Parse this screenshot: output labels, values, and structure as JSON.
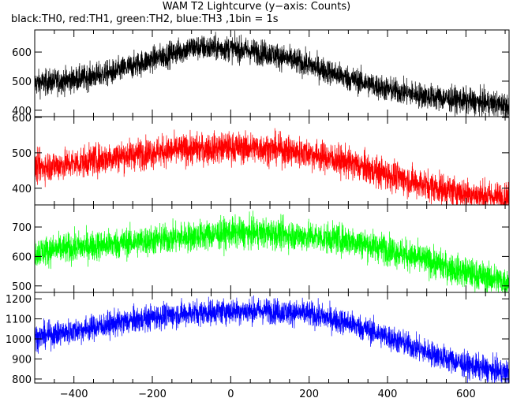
{
  "title": "WAM T2 Lightcurve (y−axis: Counts)",
  "subtitle": "black:TH0, red:TH1, green:TH2, blue:TH3 ,1bin = 1s",
  "chart_data": [
    {
      "type": "line",
      "series": [
        {
          "color": "#000000",
          "noise": 22,
          "x": [
            -500,
            -400,
            -300,
            -200,
            -100,
            0,
            100,
            200,
            300,
            400,
            500,
            600,
            700
          ],
          "values": [
            492,
            505,
            530,
            575,
            615,
            612,
            595,
            555,
            510,
            472,
            448,
            432,
            418
          ]
        }
      ],
      "ylim": [
        378,
        676
      ],
      "yticks": [
        400,
        500,
        600
      ]
    },
    {
      "type": "line",
      "series": [
        {
          "color": "#ff0000",
          "noise": 22,
          "x": [
            -500,
            -400,
            -300,
            -200,
            -100,
            0,
            100,
            200,
            300,
            400,
            500,
            600,
            700
          ],
          "values": [
            458,
            470,
            488,
            502,
            510,
            515,
            512,
            498,
            472,
            438,
            408,
            385,
            372
          ]
        }
      ],
      "ylim": [
        353,
        602
      ],
      "yticks": [
        400,
        500,
        600
      ]
    },
    {
      "type": "line",
      "series": [
        {
          "color": "#00ff00",
          "noise": 26,
          "x": [
            -500,
            -400,
            -300,
            -200,
            -100,
            0,
            100,
            200,
            300,
            400,
            500,
            600,
            700
          ],
          "values": [
            615,
            630,
            642,
            655,
            668,
            680,
            678,
            668,
            655,
            625,
            585,
            545,
            515
          ]
        }
      ],
      "ylim": [
        478,
        775
      ],
      "yticks": [
        500,
        600,
        700
      ]
    },
    {
      "type": "line",
      "series": [
        {
          "color": "#0000ff",
          "noise": 32,
          "x": [
            -500,
            -400,
            -300,
            -200,
            -100,
            0,
            100,
            200,
            300,
            400,
            500,
            600,
            700
          ],
          "values": [
            1008,
            1040,
            1075,
            1108,
            1130,
            1140,
            1140,
            1125,
            1080,
            1010,
            935,
            870,
            830
          ]
        }
      ],
      "ylim": [
        780,
        1232
      ],
      "yticks": [
        800,
        900,
        1000,
        1100,
        1200
      ],
      "xlim": [
        -500,
        710
      ],
      "xticks": [
        -400,
        -200,
        0,
        200,
        400,
        600
      ]
    }
  ]
}
